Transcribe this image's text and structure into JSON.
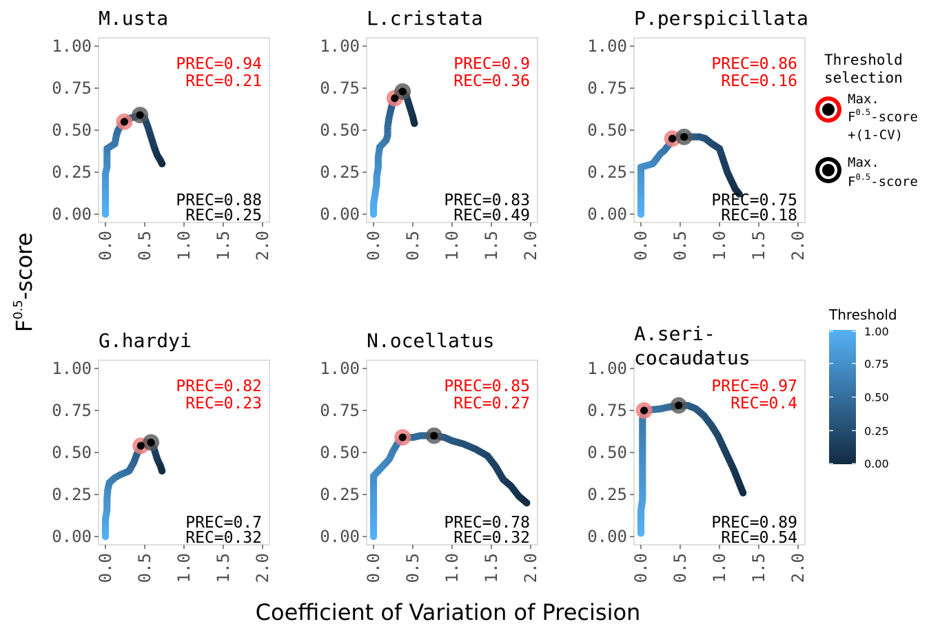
{
  "chart_data": {
    "type": "scatter",
    "xlabel": "Coefficient of Variation of Precision",
    "ylabel_main": "F",
    "ylabel_sup": "0.5",
    "ylabel_suffix": "-score",
    "xlim": [
      0,
      2
    ],
    "ylim": [
      0,
      1
    ],
    "xticks": [
      "0.0",
      "0.5",
      "1.0",
      "1.5",
      "2.0"
    ],
    "yticks": [
      "0.00",
      "0.25",
      "0.50",
      "0.75",
      "1.00"
    ],
    "colors": {
      "red_marker": "#ff0000",
      "black_marker": "#000000",
      "low": "#132b43",
      "high": "#56b1f7"
    },
    "legend": {
      "title_line1": "Threshold",
      "title_line2": "selection",
      "red_label_line1": "Max.",
      "red_label_line2": "F",
      "red_label_sup": "0.5",
      "red_label_suffix": "-score",
      "red_label_line3": "+(1-CV)",
      "black_label_line1": "Max.",
      "black_label_line2": "F",
      "black_label_sup": "0.5",
      "black_label_suffix": "-score"
    },
    "colorbar": {
      "title": "Threshold",
      "ticks": [
        "1.00",
        "0.75",
        "0.50",
        "0.25",
        "0.00"
      ]
    },
    "panels": [
      {
        "title": "M.usta",
        "red_prec": "PREC=0.94",
        "red_rec": "REC=0.21",
        "black_prec": "PREC=0.88",
        "black_rec": "REC=0.25",
        "red_point": [
          0.24,
          0.55
        ],
        "black_point": [
          0.44,
          0.59
        ],
        "curve": [
          [
            0.0,
            0.0
          ],
          [
            0.0,
            0.05
          ],
          [
            0.0,
            0.1
          ],
          [
            0.0,
            0.15
          ],
          [
            0.0,
            0.2
          ],
          [
            0.0,
            0.24
          ],
          [
            0.02,
            0.28
          ],
          [
            0.02,
            0.32
          ],
          [
            0.02,
            0.36
          ],
          [
            0.02,
            0.39
          ],
          [
            0.12,
            0.42
          ],
          [
            0.14,
            0.47
          ],
          [
            0.16,
            0.5
          ],
          [
            0.2,
            0.53
          ],
          [
            0.24,
            0.55
          ],
          [
            0.3,
            0.57
          ],
          [
            0.38,
            0.58
          ],
          [
            0.44,
            0.59
          ],
          [
            0.5,
            0.57
          ],
          [
            0.54,
            0.52
          ],
          [
            0.58,
            0.46
          ],
          [
            0.62,
            0.4
          ],
          [
            0.66,
            0.35
          ],
          [
            0.7,
            0.32
          ],
          [
            0.72,
            0.3
          ]
        ]
      },
      {
        "title": "L.cristata",
        "red_prec": "PREC=0.9",
        "red_rec": "REC=0.36",
        "black_prec": "PREC=0.83",
        "black_rec": "REC=0.49",
        "red_point": [
          0.27,
          0.69
        ],
        "black_point": [
          0.37,
          0.73
        ],
        "curve": [
          [
            0.0,
            0.0
          ],
          [
            0.0,
            0.06
          ],
          [
            0.02,
            0.12
          ],
          [
            0.04,
            0.18
          ],
          [
            0.04,
            0.22
          ],
          [
            0.06,
            0.28
          ],
          [
            0.06,
            0.34
          ],
          [
            0.08,
            0.4
          ],
          [
            0.16,
            0.44
          ],
          [
            0.18,
            0.47
          ],
          [
            0.18,
            0.52
          ],
          [
            0.2,
            0.58
          ],
          [
            0.22,
            0.62
          ],
          [
            0.24,
            0.66
          ],
          [
            0.27,
            0.69
          ],
          [
            0.32,
            0.72
          ],
          [
            0.37,
            0.73
          ],
          [
            0.42,
            0.7
          ],
          [
            0.46,
            0.64
          ],
          [
            0.5,
            0.58
          ],
          [
            0.52,
            0.54
          ]
        ]
      },
      {
        "title": "P.perspicillata",
        "red_prec": "PREC=0.86",
        "red_rec": "REC=0.16",
        "black_prec": "PREC=0.75",
        "black_rec": "REC=0.18",
        "red_point": [
          0.4,
          0.45
        ],
        "black_point": [
          0.55,
          0.46
        ],
        "curve": [
          [
            0.0,
            0.0
          ],
          [
            0.0,
            0.05
          ],
          [
            0.0,
            0.1
          ],
          [
            0.0,
            0.15
          ],
          [
            0.0,
            0.2
          ],
          [
            0.0,
            0.25
          ],
          [
            0.0,
            0.28
          ],
          [
            0.15,
            0.3
          ],
          [
            0.2,
            0.33
          ],
          [
            0.25,
            0.36
          ],
          [
            0.3,
            0.38
          ],
          [
            0.35,
            0.41
          ],
          [
            0.4,
            0.45
          ],
          [
            0.48,
            0.46
          ],
          [
            0.55,
            0.46
          ],
          [
            0.65,
            0.46
          ],
          [
            0.75,
            0.46
          ],
          [
            0.82,
            0.45
          ],
          [
            0.9,
            0.42
          ],
          [
            1.0,
            0.39
          ],
          [
            1.05,
            0.32
          ],
          [
            1.1,
            0.25
          ],
          [
            1.15,
            0.2
          ],
          [
            1.2,
            0.15
          ],
          [
            1.25,
            0.12
          ]
        ]
      },
      {
        "title": "G.hardyi",
        "red_prec": "PREC=0.82",
        "red_rec": "REC=0.23",
        "black_prec": "PREC=0.7",
        "black_rec": "REC=0.32",
        "red_point": [
          0.45,
          0.54
        ],
        "black_point": [
          0.58,
          0.56
        ],
        "curve": [
          [
            0.0,
            0.0
          ],
          [
            0.0,
            0.05
          ],
          [
            0.0,
            0.1
          ],
          [
            0.02,
            0.16
          ],
          [
            0.02,
            0.22
          ],
          [
            0.03,
            0.28
          ],
          [
            0.05,
            0.32
          ],
          [
            0.12,
            0.35
          ],
          [
            0.2,
            0.37
          ],
          [
            0.3,
            0.39
          ],
          [
            0.36,
            0.44
          ],
          [
            0.4,
            0.49
          ],
          [
            0.45,
            0.54
          ],
          [
            0.52,
            0.56
          ],
          [
            0.58,
            0.56
          ],
          [
            0.62,
            0.52
          ],
          [
            0.66,
            0.46
          ],
          [
            0.7,
            0.42
          ],
          [
            0.72,
            0.39
          ]
        ]
      },
      {
        "title": "N.ocellatus",
        "red_prec": "PREC=0.85",
        "red_rec": "REC=0.27",
        "black_prec": "PREC=0.78",
        "black_rec": "REC=0.32",
        "red_point": [
          0.37,
          0.59
        ],
        "black_point": [
          0.77,
          0.6
        ],
        "curve": [
          [
            0.0,
            0.0
          ],
          [
            0.0,
            0.06
          ],
          [
            0.0,
            0.12
          ],
          [
            0.0,
            0.18
          ],
          [
            0.0,
            0.24
          ],
          [
            0.0,
            0.3
          ],
          [
            0.0,
            0.36
          ],
          [
            0.12,
            0.42
          ],
          [
            0.2,
            0.46
          ],
          [
            0.25,
            0.51
          ],
          [
            0.3,
            0.55
          ],
          [
            0.37,
            0.59
          ],
          [
            0.5,
            0.59
          ],
          [
            0.6,
            0.6
          ],
          [
            0.77,
            0.6
          ],
          [
            0.9,
            0.59
          ],
          [
            1.0,
            0.57
          ],
          [
            1.15,
            0.55
          ],
          [
            1.3,
            0.52
          ],
          [
            1.45,
            0.48
          ],
          [
            1.55,
            0.42
          ],
          [
            1.65,
            0.34
          ],
          [
            1.75,
            0.3
          ],
          [
            1.85,
            0.24
          ],
          [
            1.95,
            0.2
          ]
        ]
      },
      {
        "title": "A.seri-",
        "title2": "cocaudatus",
        "red_prec": "PREC=0.97",
        "red_rec": "REC=0.4",
        "black_prec": "PREC=0.89",
        "black_rec": "REC=0.54",
        "red_point": [
          0.04,
          0.75
        ],
        "black_point": [
          0.48,
          0.78
        ],
        "curve": [
          [
            0.0,
            0.02
          ],
          [
            0.0,
            0.08
          ],
          [
            0.0,
            0.15
          ],
          [
            0.02,
            0.22
          ],
          [
            0.02,
            0.3
          ],
          [
            0.02,
            0.38
          ],
          [
            0.02,
            0.46
          ],
          [
            0.02,
            0.54
          ],
          [
            0.02,
            0.62
          ],
          [
            0.02,
            0.7
          ],
          [
            0.04,
            0.75
          ],
          [
            0.25,
            0.76
          ],
          [
            0.35,
            0.77
          ],
          [
            0.48,
            0.78
          ],
          [
            0.6,
            0.78
          ],
          [
            0.7,
            0.76
          ],
          [
            0.8,
            0.72
          ],
          [
            0.9,
            0.66
          ],
          [
            0.98,
            0.6
          ],
          [
            1.05,
            0.53
          ],
          [
            1.12,
            0.46
          ],
          [
            1.18,
            0.4
          ],
          [
            1.24,
            0.33
          ],
          [
            1.3,
            0.26
          ]
        ]
      }
    ]
  }
}
